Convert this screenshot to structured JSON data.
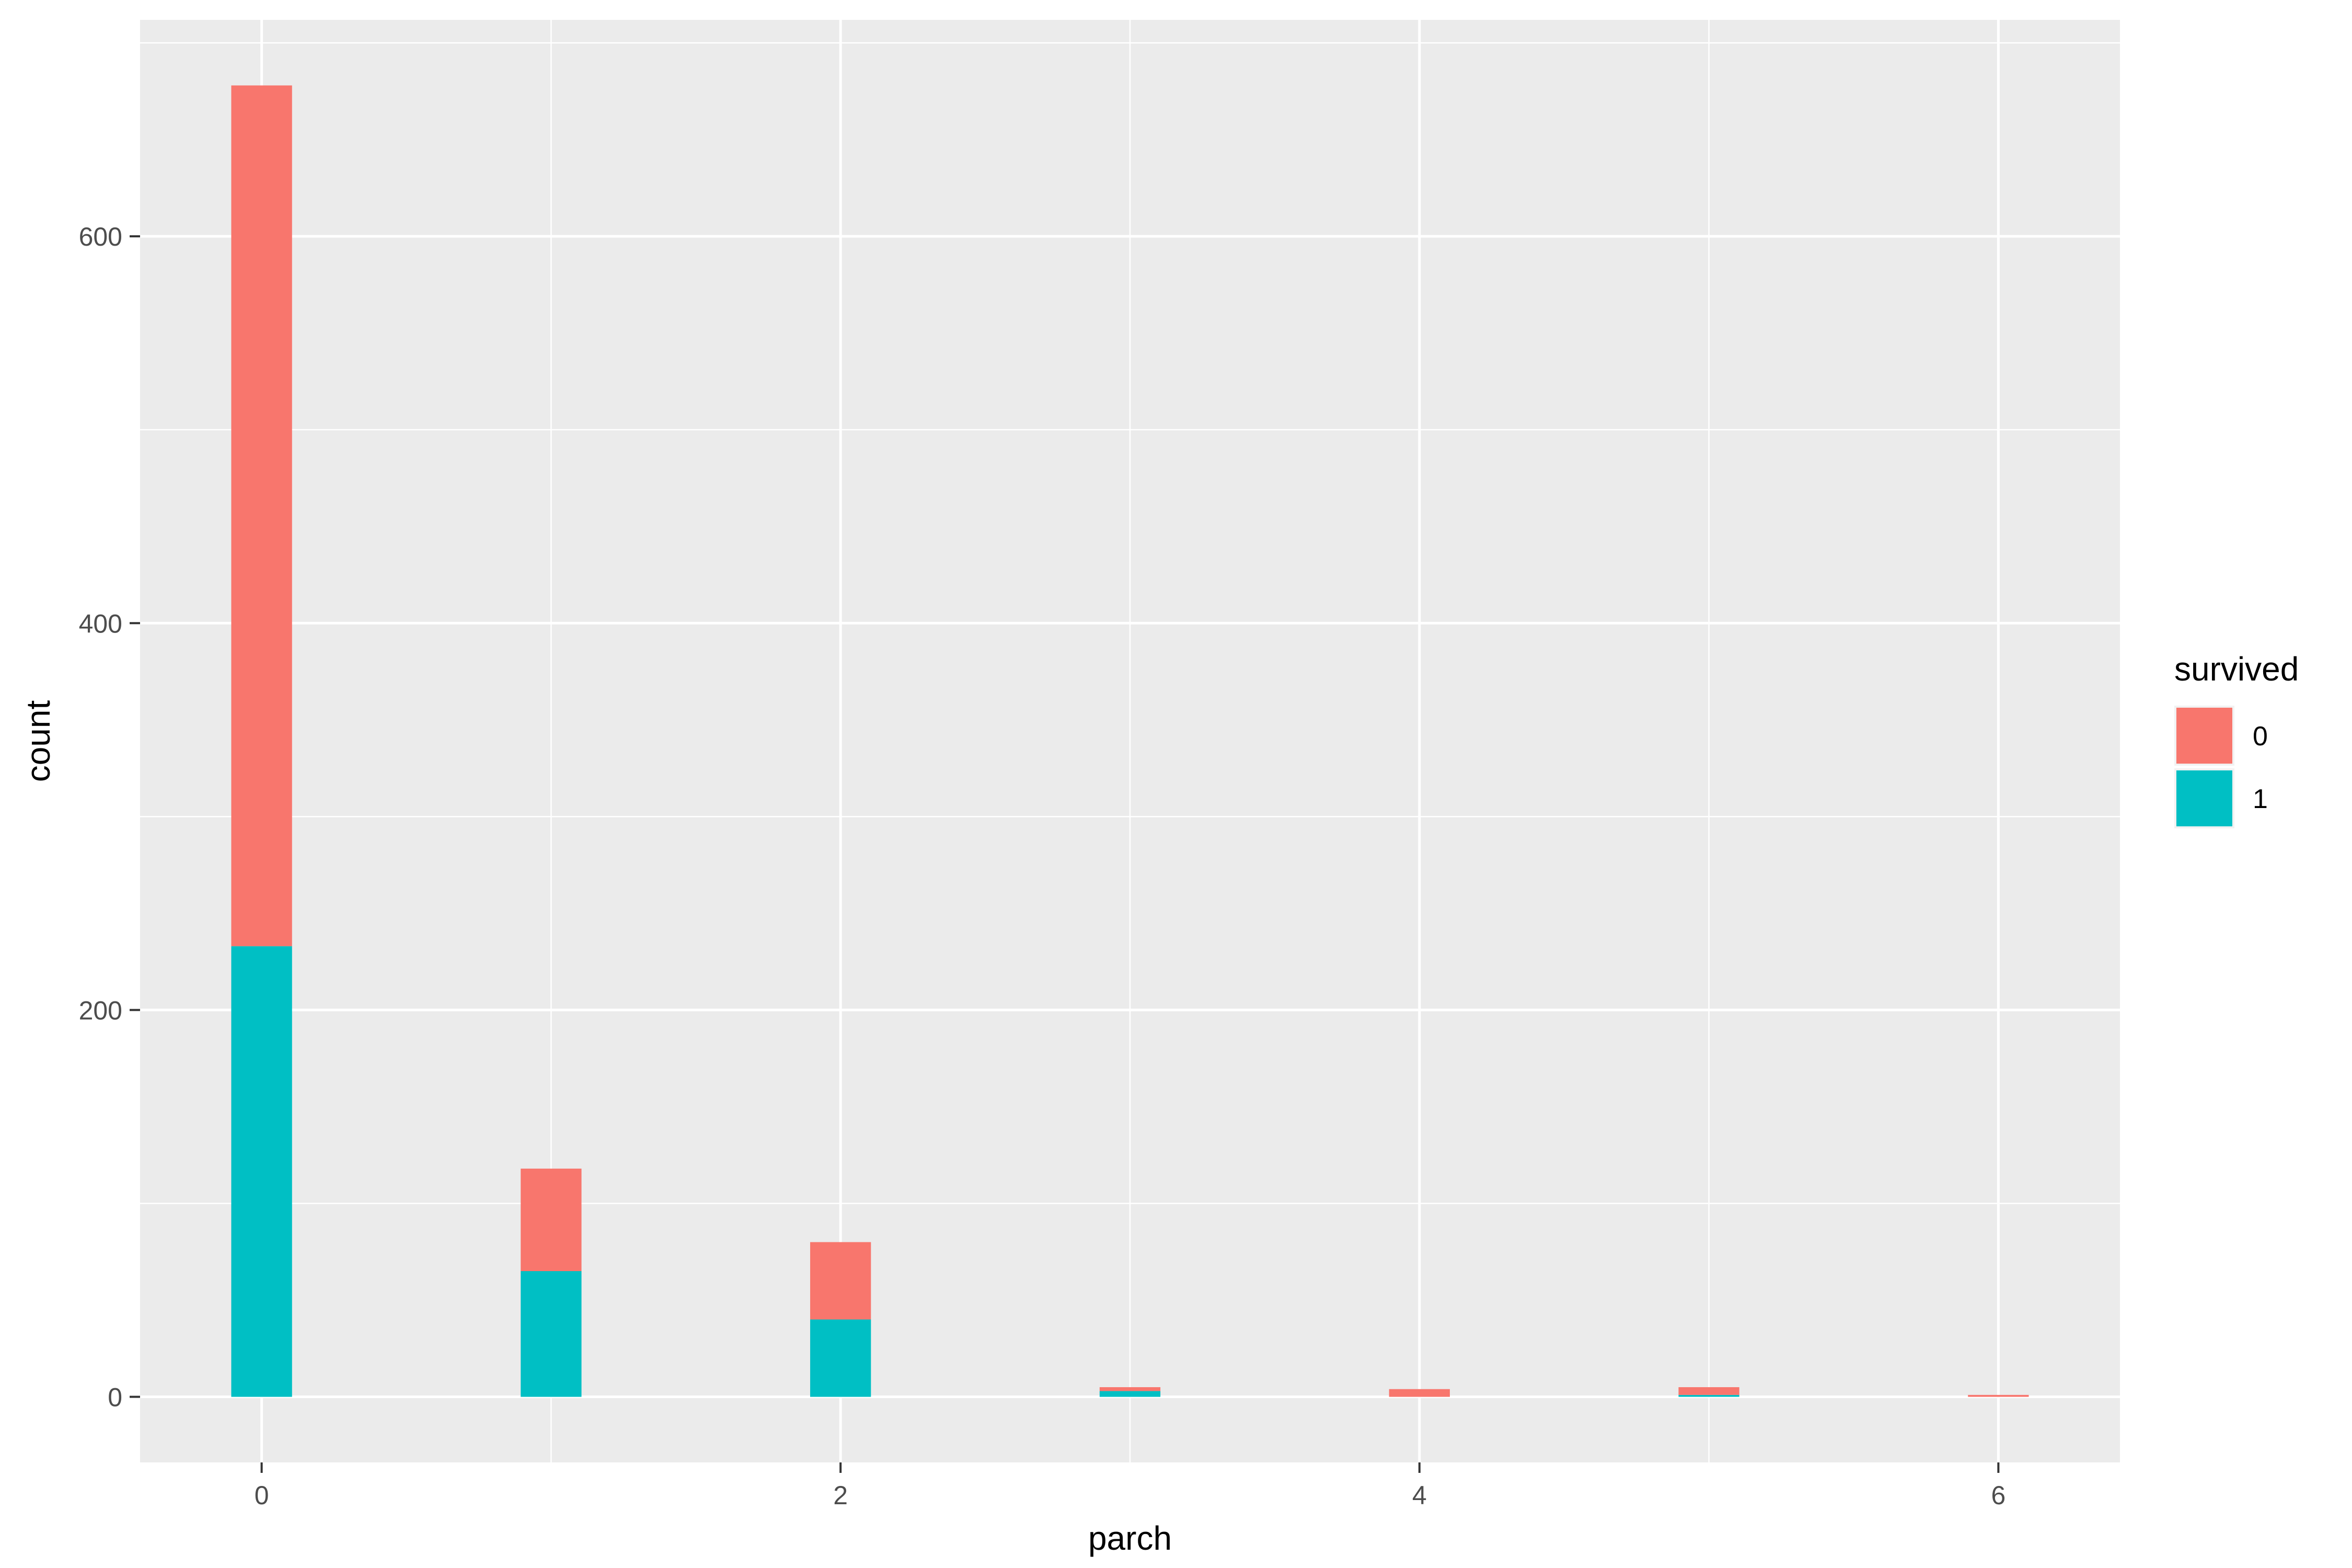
{
  "chart_data": {
    "type": "bar",
    "stacked": true,
    "title": "",
    "xlabel": "parch",
    "ylabel": "count",
    "x_ticks": [
      0,
      2,
      4,
      6
    ],
    "y_ticks": [
      0,
      200,
      400,
      600
    ],
    "xlim": [
      -0.42,
      6.42
    ],
    "ylim": [
      -33.9,
      711.9
    ],
    "grid": true,
    "legend": {
      "title": "survived",
      "position": "right",
      "items": [
        {
          "label": "0",
          "color": "#F8766D"
        },
        {
          "label": "1",
          "color": "#00BFC4"
        }
      ]
    },
    "x": [
      0,
      1,
      2,
      3,
      4,
      5,
      6
    ],
    "series": [
      {
        "name": "0",
        "color": "#F8766D",
        "values": [
          445,
          53,
          40,
          2,
          4,
          4,
          1
        ]
      },
      {
        "name": "1",
        "color": "#00BFC4",
        "values": [
          233,
          65,
          40,
          3,
          0,
          1,
          0
        ]
      }
    ],
    "colors": {
      "panel_background": "#EBEBEB",
      "grid": "#FFFFFF",
      "tick_text": "#4D4D4D"
    }
  }
}
